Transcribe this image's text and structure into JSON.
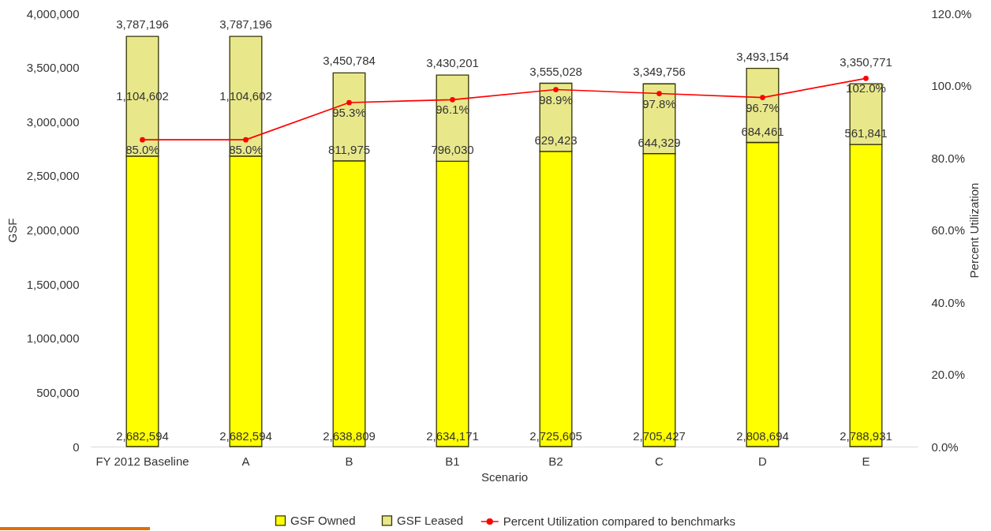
{
  "chart_data": {
    "type": "bar",
    "stacked": true,
    "categories": [
      "FY 2012 Baseline",
      "A",
      "B",
      "B1",
      "B2",
      "C",
      "D",
      "E"
    ],
    "xlabel": "Scenario",
    "ylabel": "GSF",
    "y2label": "Percent Utilization",
    "ylim": [
      0,
      4000000
    ],
    "yticks": [
      0,
      {
        "value": 500000,
        "label": "500,000"
      },
      {
        "value": 1000000,
        "label": "1,000,000"
      },
      {
        "value": 1500000,
        "label": "1,500,000"
      },
      {
        "value": 2000000,
        "label": "2,000,000"
      },
      {
        "value": 2500000,
        "label": "2,500,000"
      },
      {
        "value": 3000000,
        "label": "3,000,000"
      },
      {
        "value": 3500000,
        "label": "3,500,000"
      },
      {
        "value": 4000000,
        "label": "4,000,000"
      }
    ],
    "y2lim": [
      0,
      120
    ],
    "y2ticks": [
      {
        "value": 0,
        "label": "0.0%"
      },
      {
        "value": 20,
        "label": "20.0%"
      },
      {
        "value": 40,
        "label": "40.0%"
      },
      {
        "value": 60,
        "label": "60.0%"
      },
      {
        "value": 80,
        "label": "80.0%"
      },
      {
        "value": 100,
        "label": "100.0%"
      },
      {
        "value": 120,
        "label": "120.0%"
      }
    ],
    "series": [
      {
        "name": "GSF Owned",
        "color": "#ffff00",
        "values": [
          2682594,
          2682594,
          2638809,
          2634171,
          2725605,
          2705427,
          2808694,
          2788931
        ],
        "value_labels": [
          "2,682,594",
          "2,682,594",
          "2,638,809",
          "2,634,171",
          "2,725,605",
          "2,705,427",
          "2,808,694",
          "2,788,931"
        ]
      },
      {
        "name": "GSF Leased",
        "color": "#e8e88b",
        "values": [
          1104602,
          1104602,
          811975,
          796030,
          629423,
          644329,
          684461,
          561841
        ],
        "value_labels": [
          "1,104,602",
          "1,104,602",
          "811,975",
          "796,030",
          "629,423",
          "644,329",
          "684,461",
          "561,841"
        ]
      },
      {
        "name": "Percent Utilization compared to benchmarks",
        "type": "line",
        "axis": "y2",
        "color": "#ff0000",
        "values": [
          85.0,
          85.0,
          95.3,
          96.1,
          98.9,
          97.8,
          96.7,
          102.0
        ],
        "value_labels": [
          "85.0%",
          "85.0%",
          "95.3%",
          "96.1%",
          "98.9%",
          "97.8%",
          "96.7%",
          "102.0%"
        ]
      }
    ],
    "totals": [
      "3,787,196",
      "3,787,196",
      "3,450,784",
      "3,430,201",
      null,
      "3,349,756",
      "3,493,154",
      "3,350,771"
    ],
    "annotations": [
      {
        "text": "3,555,028",
        "x": "B2",
        "y": 3355028
      }
    ],
    "grid": false,
    "legend": "bottom",
    "marker": "circle",
    "line_style": "solid"
  }
}
